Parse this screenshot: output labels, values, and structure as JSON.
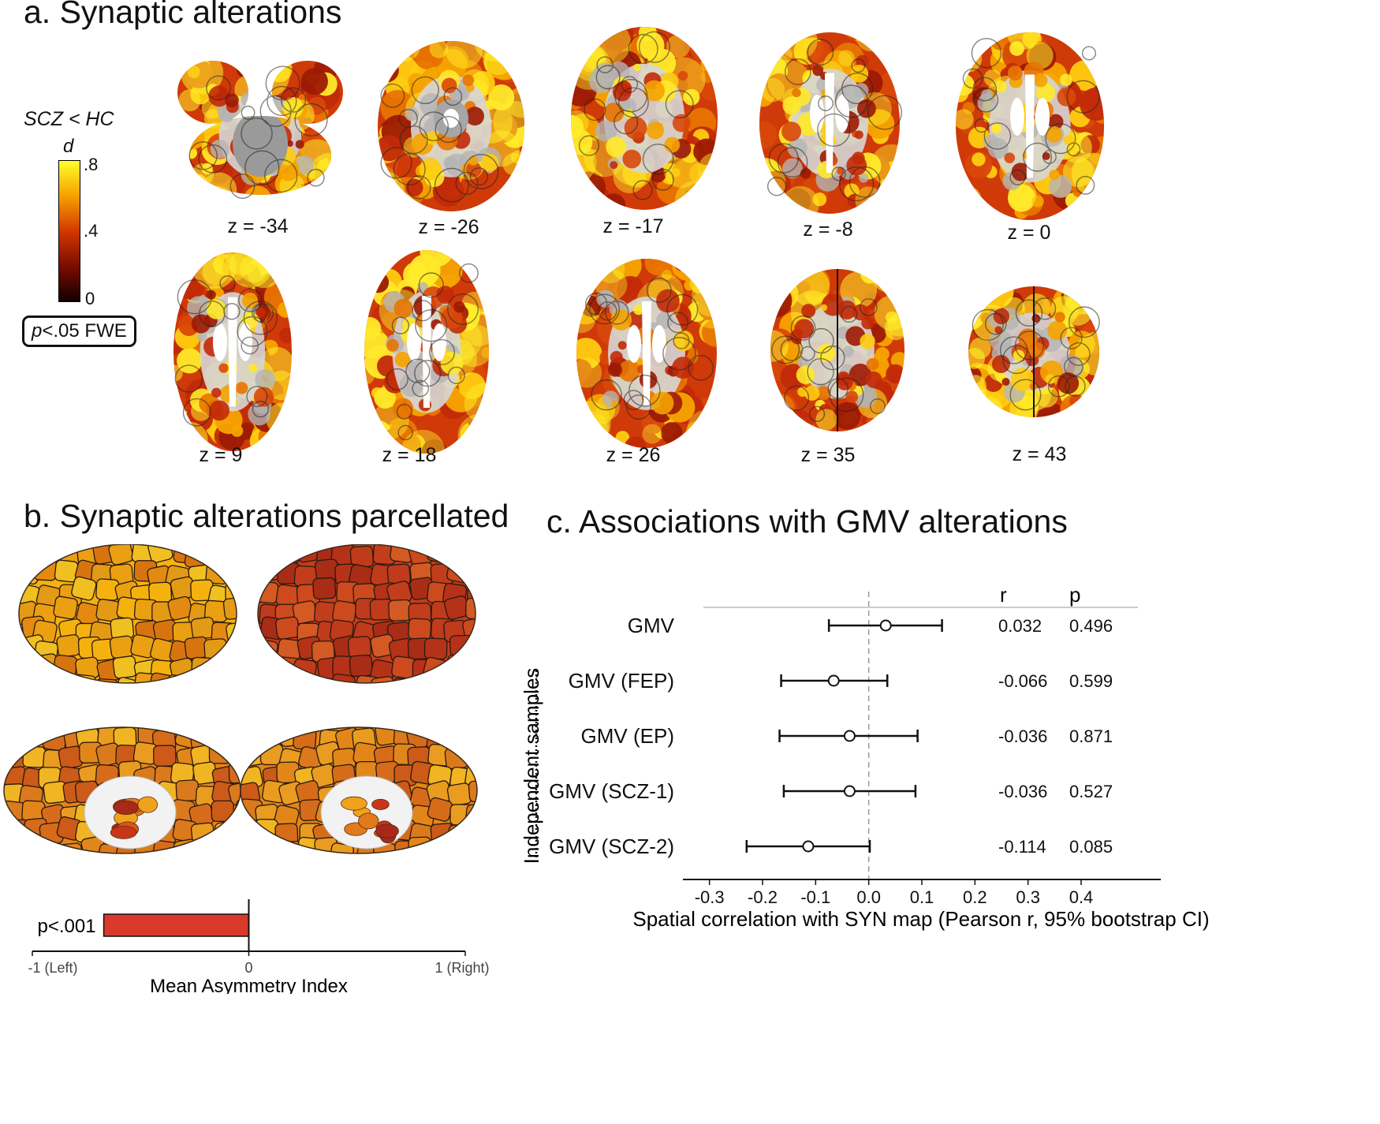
{
  "panel_a": {
    "title": "a. Synaptic alterations",
    "legend": {
      "contrast": "SCZ < HC",
      "stat": "d",
      "ticks": [
        ".8",
        ".4",
        "0"
      ],
      "threshold_prefix": "p",
      "threshold_rest": "<.05 FWE",
      "colors": [
        "#ffff2a",
        "#f6a000",
        "#d23800",
        "#7a0c00",
        "#120000"
      ]
    },
    "slices": [
      {
        "label": "z = -34",
        "shape": "cerebellar",
        "hot": 0.55
      },
      {
        "label": "z = -26",
        "shape": "temporal",
        "hot": 0.5
      },
      {
        "label": "z = -17",
        "shape": "axial-low",
        "hot": 0.45
      },
      {
        "label": "z = -8",
        "shape": "axial-mid",
        "hot": 0.45
      },
      {
        "label": "z = 0",
        "shape": "axial-mid",
        "hot": 0.55
      },
      {
        "label": "z = 9",
        "shape": "axial",
        "hot": 0.55
      },
      {
        "label": "z = 18",
        "shape": "axial",
        "hot": 0.45
      },
      {
        "label": "z = 26",
        "shape": "axial",
        "hot": 0.4
      },
      {
        "label": "z = 35",
        "shape": "axial-high",
        "hot": 0.55
      },
      {
        "label": "z = 43",
        "shape": "axial-top",
        "hot": 0.6
      }
    ]
  },
  "panel_b": {
    "title": "b. Synaptic alterations parcellated",
    "surfaces": [
      {
        "view": "left-lateral",
        "tone": "bright"
      },
      {
        "view": "right-lateral",
        "tone": "dark"
      },
      {
        "view": "left-medial",
        "tone": "mid"
      },
      {
        "view": "right-medial",
        "tone": "mid"
      }
    ],
    "asymmetry_chart": {
      "type": "bar",
      "categories": [
        "p<.001"
      ],
      "values": [
        -0.67
      ],
      "xlim": [
        -1,
        1
      ],
      "ticks": [
        {
          "value": -1,
          "label": "-1 (Left)"
        },
        {
          "value": 0,
          "label": "0"
        },
        {
          "value": 1,
          "label": "1 (Right)"
        }
      ],
      "xlabel": "Mean Asymmetry Index",
      "bar_color": "#d93a2b"
    }
  },
  "panel_c": {
    "title": "c. Associations with GMV alterations",
    "bracket_label": "Independent samples"
  },
  "chart_data": {
    "type": "scatter",
    "subtype": "forest",
    "categories": [
      "GMV",
      "GMV (FEP)",
      "GMV (EP)",
      "GMV (SCZ-1)",
      "GMV (SCZ-2)"
    ],
    "values": [
      0.032,
      -0.066,
      -0.036,
      -0.036,
      -0.114
    ],
    "ci_low": [
      -0.075,
      -0.165,
      -0.168,
      -0.16,
      -0.23
    ],
    "ci_high": [
      0.138,
      0.035,
      0.092,
      0.088,
      0.002
    ],
    "r_labels": [
      "0.032",
      "-0.066",
      "-0.036",
      "-0.036",
      "-0.114"
    ],
    "p_labels": [
      "0.496",
      "0.599",
      "0.871",
      "0.527",
      "0.085"
    ],
    "column_headers": {
      "r": "r",
      "p": "p"
    },
    "xlim": [
      -0.35,
      0.55
    ],
    "xticks": [
      -0.3,
      -0.2,
      -0.1,
      0.0,
      0.1,
      0.2,
      0.3,
      0.4
    ],
    "xtick_labels": [
      "-0.3",
      "-0.2",
      "-0.1",
      "0.0",
      "0.1",
      "0.2",
      "0.3",
      "0.4"
    ],
    "xlabel": "Spatial correlation with SYN map (Pearson r, 95% bootstrap CI)",
    "reference_line": 0,
    "grid": false
  }
}
